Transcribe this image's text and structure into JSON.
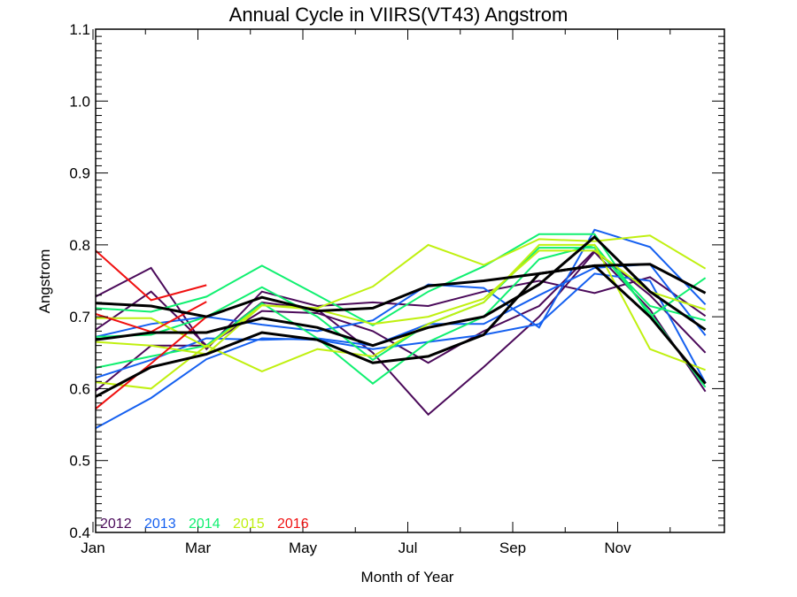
{
  "chart_data": {
    "type": "line",
    "title": "Annual Cycle in VIIRS(VT43) Angstrom",
    "xlabel": "Month of Year",
    "ylabel": "Angstrom",
    "xlim": [
      1,
      13
    ],
    "ylim": [
      0.4,
      1.1
    ],
    "x_ticks": [
      {
        "value": 1,
        "label": "Jan"
      },
      {
        "value": 3,
        "label": "Mar"
      },
      {
        "value": 5,
        "label": "May"
      },
      {
        "value": 7,
        "label": "Jul"
      },
      {
        "value": 9,
        "label": "Sep"
      },
      {
        "value": 11,
        "label": "Nov"
      }
    ],
    "x_minor_ticks": [
      2,
      4,
      6,
      8,
      10,
      12
    ],
    "y_ticks": [
      {
        "value": 0.4,
        "label": "0.4"
      },
      {
        "value": 0.5,
        "label": "0.5"
      },
      {
        "value": 0.6,
        "label": "0.6"
      },
      {
        "value": 0.7,
        "label": "0.7"
      },
      {
        "value": 0.8,
        "label": "0.8"
      },
      {
        "value": 0.9,
        "label": "0.9"
      },
      {
        "value": 1.0,
        "label": "1.0"
      },
      {
        "value": 1.1,
        "label": "1.1"
      }
    ],
    "y_minor_step": 0.01,
    "grid": false,
    "legend_position": "bottom-left",
    "legend": [
      {
        "label": "2012",
        "color": "#4B0A5A"
      },
      {
        "label": "2013",
        "color": "#1560F0"
      },
      {
        "label": "2014",
        "color": "#10F070"
      },
      {
        "label": "2015",
        "color": "#C0F010"
      },
      {
        "label": "2016",
        "color": "#F01010"
      }
    ],
    "x": [
      1,
      2,
      3,
      4,
      5,
      6,
      7,
      8,
      9,
      10,
      11,
      12
    ],
    "series": [
      {
        "name": "2012-a",
        "year": "2012",
        "color": "#4B0A5A",
        "values": [
          0.728,
          0.768,
          0.655,
          0.735,
          0.715,
          0.72,
          0.715,
          0.735,
          0.75,
          0.733,
          0.755,
          0.701
        ]
      },
      {
        "name": "2012-b",
        "year": "2012",
        "color": "#4B0A5A",
        "values": [
          0.682,
          0.735,
          0.66,
          0.708,
          0.705,
          0.68,
          0.636,
          0.68,
          0.715,
          0.792,
          0.73,
          0.65
        ]
      },
      {
        "name": "2012-c",
        "year": "2012",
        "color": "#4B0A5A",
        "values": [
          0.597,
          0.66,
          0.66,
          0.72,
          0.71,
          0.65,
          0.564,
          0.63,
          0.7,
          0.79,
          0.71,
          0.596
        ]
      },
      {
        "name": "2013-a",
        "year": "2013",
        "color": "#1560F0",
        "values": [
          0.672,
          0.69,
          0.7,
          0.689,
          0.68,
          0.695,
          0.745,
          0.74,
          0.685,
          0.821,
          0.797,
          0.717
        ]
      },
      {
        "name": "2013-b",
        "year": "2013",
        "color": "#1560F0",
        "values": [
          0.615,
          0.64,
          0.67,
          0.668,
          0.67,
          0.66,
          0.69,
          0.69,
          0.73,
          0.768,
          0.773,
          0.674
        ]
      },
      {
        "name": "2013-c",
        "year": "2013",
        "color": "#1560F0",
        "values": [
          0.545,
          0.587,
          0.641,
          0.67,
          0.668,
          0.655,
          0.665,
          0.675,
          0.69,
          0.76,
          0.75,
          0.608
        ]
      },
      {
        "name": "2014-a",
        "year": "2014",
        "color": "#10F070",
        "values": [
          0.712,
          0.707,
          0.728,
          0.771,
          0.73,
          0.688,
          0.735,
          0.77,
          0.815,
          0.815,
          0.7,
          0.754
        ]
      },
      {
        "name": "2014-b",
        "year": "2014",
        "color": "#10F070",
        "values": [
          0.672,
          0.675,
          0.7,
          0.741,
          0.7,
          0.64,
          0.69,
          0.72,
          0.796,
          0.796,
          0.715,
          0.695
        ]
      },
      {
        "name": "2014-c",
        "year": "2014",
        "color": "#10F070",
        "values": [
          0.629,
          0.645,
          0.66,
          0.719,
          0.67,
          0.607,
          0.665,
          0.7,
          0.78,
          0.8,
          0.705,
          0.602
        ]
      },
      {
        "name": "2015-a",
        "year": "2015",
        "color": "#C0F010",
        "values": [
          0.698,
          0.698,
          0.658,
          0.716,
          0.712,
          0.742,
          0.8,
          0.772,
          0.808,
          0.805,
          0.813,
          0.767
        ]
      },
      {
        "name": "2015-b",
        "year": "2015",
        "color": "#C0F010",
        "values": [
          0.665,
          0.66,
          0.648,
          0.716,
          0.71,
          0.69,
          0.7,
          0.725,
          0.792,
          0.792,
          0.735,
          0.71
        ]
      },
      {
        "name": "2015-c",
        "year": "2015",
        "color": "#C0F010",
        "values": [
          0.609,
          0.6,
          0.66,
          0.624,
          0.655,
          0.645,
          0.69,
          0.72,
          0.8,
          0.8,
          0.655,
          0.626
        ]
      },
      {
        "name": "2016-a",
        "year": "2016",
        "color": "#F01010",
        "values": [
          0.792,
          0.723,
          0.744
        ]
      },
      {
        "name": "2016-b",
        "year": "2016",
        "color": "#F01010",
        "values": [
          0.704,
          0.679,
          0.721
        ]
      },
      {
        "name": "2016-c",
        "year": "2016",
        "color": "#F01010",
        "values": [
          0.572,
          0.635,
          0.7
        ]
      },
      {
        "name": "mean-a",
        "year": "mean",
        "color": "#000000",
        "values": [
          0.719,
          0.715,
          0.7,
          0.727,
          0.708,
          0.712,
          0.743,
          0.75,
          0.76,
          0.771,
          0.773,
          0.733
        ]
      },
      {
        "name": "mean-b",
        "year": "mean",
        "color": "#000000",
        "values": [
          0.668,
          0.678,
          0.678,
          0.698,
          0.685,
          0.66,
          0.685,
          0.7,
          0.745,
          0.811,
          0.735,
          0.682
        ]
      },
      {
        "name": "mean-c",
        "year": "mean",
        "color": "#000000",
        "values": [
          0.589,
          0.63,
          0.648,
          0.678,
          0.668,
          0.636,
          0.645,
          0.675,
          0.76,
          0.771,
          0.7,
          0.607
        ]
      }
    ]
  }
}
